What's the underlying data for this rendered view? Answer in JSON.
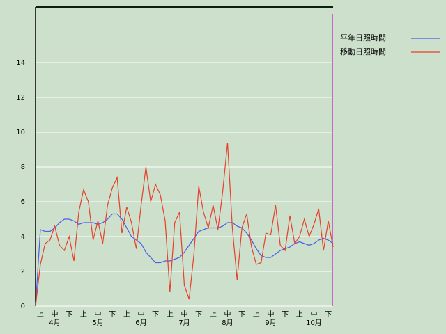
{
  "chart_data": {
    "type": "line",
    "categories": [
      null,
      "上",
      null,
      null,
      "中",
      null,
      null,
      "下",
      null,
      null,
      "上",
      null,
      null,
      "中",
      null,
      null,
      "下",
      null,
      null,
      "上",
      null,
      null,
      "中",
      null,
      null,
      "下",
      null,
      null,
      "上",
      null,
      null,
      "中",
      null,
      null,
      "下",
      null,
      null,
      "上",
      null,
      null,
      "中",
      null,
      null,
      "下",
      null,
      null,
      "上",
      null,
      null,
      "中",
      null,
      null,
      "下",
      null,
      null,
      "上",
      null,
      null,
      "中",
      null,
      null,
      "下",
      null
    ],
    "months": [
      "4月",
      "5月",
      "6月",
      "7月",
      "8月",
      "9月",
      "10月"
    ],
    "series": [
      {
        "name": "平年日照時間",
        "color": "#4a5ee8",
        "values": [
          0,
          4.4,
          4.3,
          4.3,
          4.5,
          4.8,
          5.0,
          5.0,
          4.9,
          4.7,
          4.8,
          4.8,
          4.8,
          4.7,
          4.8,
          5.0,
          5.3,
          5.3,
          5.0,
          4.5,
          4.0,
          3.8,
          3.6,
          3.1,
          2.8,
          2.5,
          2.5,
          2.6,
          2.6,
          2.7,
          2.8,
          3.1,
          3.5,
          3.9,
          4.3,
          4.4,
          4.5,
          4.5,
          4.5,
          4.6,
          4.8,
          4.8,
          4.6,
          4.5,
          4.2,
          3.8,
          3.3,
          2.9,
          2.8,
          2.8,
          3.0,
          3.2,
          3.3,
          3.4,
          3.6,
          3.7,
          3.6,
          3.5,
          3.6,
          3.8,
          3.9,
          3.8,
          3.6
        ]
      },
      {
        "name": "移動日照時間",
        "color": "#e8402a",
        "values": [
          0,
          2.4,
          3.6,
          3.8,
          4.6,
          3.5,
          3.2,
          4.0,
          2.6,
          5.4,
          6.7,
          6.0,
          3.8,
          4.9,
          3.6,
          5.8,
          6.8,
          7.4,
          4.2,
          5.7,
          4.8,
          3.3,
          5.8,
          8.0,
          6.0,
          7.0,
          6.4,
          4.9,
          0.8,
          4.8,
          5.4,
          1.2,
          0.4,
          3.0,
          6.9,
          5.4,
          4.5,
          5.8,
          4.4,
          6.6,
          9.4,
          4.5,
          1.5,
          4.5,
          5.3,
          3.4,
          2.4,
          2.5,
          4.2,
          4.1,
          5.8,
          3.5,
          3.2,
          5.2,
          3.6,
          4.0,
          5.0,
          4.0,
          4.7,
          5.6,
          3.2,
          4.9,
          3.4
        ]
      }
    ],
    "ylim": [
      0,
      17.2
    ],
    "yticks": [
      0,
      2,
      4,
      6,
      8,
      10,
      12,
      14
    ],
    "grid": true,
    "legend": "top-right"
  }
}
